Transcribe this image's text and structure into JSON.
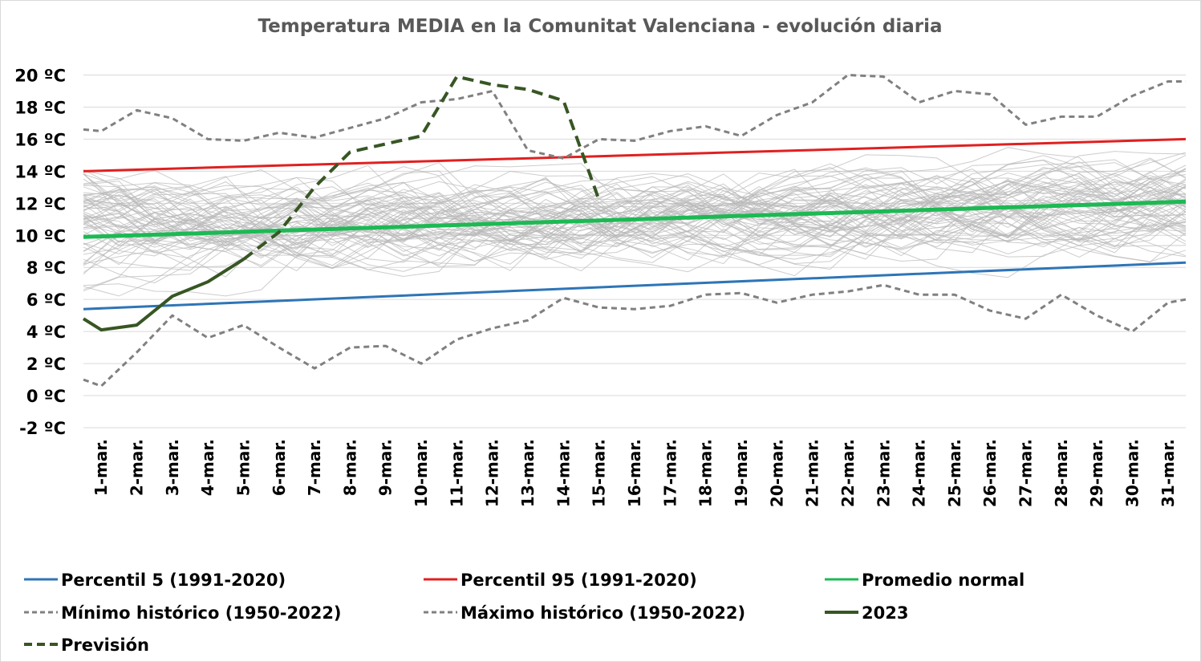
{
  "chart_data": {
    "type": "line",
    "title": "Temperatura MEDIA en la Comunitat Valenciana - evolución diaria",
    "xlabel": "",
    "ylabel": "",
    "ylim": [
      -2,
      20
    ],
    "yticks": [
      "-2 ºC",
      "0 ºC",
      "2 ºC",
      "4 ºC",
      "6 ºC",
      "8 ºC",
      "10 ºC",
      "12 ºC",
      "14 ºC",
      "16 ºC",
      "18 ºC",
      "20 ºC"
    ],
    "ytick_values": [
      -2,
      0,
      2,
      4,
      6,
      8,
      10,
      12,
      14,
      16,
      18,
      20
    ],
    "grid": true,
    "legend_position": "bottom",
    "categories": [
      "1-mar.",
      "2-mar.",
      "3-mar.",
      "4-mar.",
      "5-mar.",
      "6-mar.",
      "7-mar.",
      "8-mar.",
      "9-mar.",
      "10-mar.",
      "11-mar.",
      "12-mar.",
      "13-mar.",
      "14-mar.",
      "15-mar.",
      "16-mar.",
      "17-mar.",
      "18-mar.",
      "19-mar.",
      "20-mar.",
      "21-mar.",
      "22-mar.",
      "23-mar.",
      "24-mar.",
      "25-mar.",
      "26-mar.",
      "27-mar.",
      "28-mar.",
      "29-mar.",
      "30-mar.",
      "31-mar."
    ],
    "series": [
      {
        "name": "Percentil 5 (1991-2020)",
        "color": "#2e75b6",
        "style": "solid",
        "width": 3,
        "x": [
          0.5,
          31.5
        ],
        "y": [
          5.4,
          8.3
        ]
      },
      {
        "name": "Percentil 95 (1991-2020)",
        "color": "#e02020",
        "style": "solid",
        "width": 3,
        "x": [
          0.5,
          31.5
        ],
        "y": [
          14.0,
          16.0
        ]
      },
      {
        "name": "Promedio normal",
        "color": "#1db954",
        "style": "solid",
        "width": 5,
        "x": [
          0.5,
          31.5
        ],
        "y": [
          9.9,
          12.1
        ]
      },
      {
        "name": "Mínimo histórico (1950-2022)",
        "color": "#808080",
        "style": "dashed",
        "width": 3,
        "x": [
          0.5,
          1,
          2,
          3,
          4,
          5,
          6,
          7,
          8,
          9,
          10,
          11,
          12,
          13,
          14,
          15,
          16,
          17,
          18,
          19,
          20,
          21,
          22,
          23,
          24,
          25,
          26,
          27,
          28,
          29,
          30,
          31,
          31.5
        ],
        "y": [
          1.0,
          0.6,
          2.7,
          5.0,
          3.6,
          4.4,
          3.0,
          1.7,
          3.0,
          3.1,
          2.0,
          3.5,
          4.2,
          4.7,
          6.1,
          5.5,
          5.4,
          5.6,
          6.3,
          6.4,
          5.8,
          6.3,
          6.5,
          6.9,
          6.3,
          6.3,
          5.3,
          4.8,
          6.3,
          5.0,
          4.0,
          5.8,
          6.0
        ]
      },
      {
        "name": "Máximo histórico (1950-2022)",
        "color": "#808080",
        "style": "dashed",
        "width": 3,
        "x": [
          0.5,
          1,
          2,
          3,
          4,
          5,
          6,
          7,
          8,
          9,
          10,
          11,
          12,
          13,
          14,
          15,
          16,
          17,
          18,
          19,
          20,
          21,
          22,
          23,
          24,
          25,
          26,
          27,
          28,
          29,
          30,
          31,
          31.5
        ],
        "y": [
          16.6,
          16.5,
          17.8,
          17.3,
          16.0,
          15.9,
          16.4,
          16.1,
          16.7,
          17.3,
          18.3,
          18.5,
          19.0,
          15.3,
          14.8,
          16.0,
          15.9,
          16.5,
          16.8,
          16.2,
          17.5,
          18.3,
          20.0,
          19.9,
          18.3,
          19.0,
          18.8,
          16.9,
          17.4,
          17.4,
          18.7,
          19.6,
          19.6
        ]
      },
      {
        "name": "2023",
        "color": "#375623",
        "style": "solid",
        "width": 4,
        "x": [
          0.5,
          1,
          2,
          3,
          4,
          5
        ],
        "y": [
          4.8,
          4.1,
          4.4,
          6.2,
          7.1,
          8.5
        ]
      },
      {
        "name": "Previsión",
        "color": "#375623",
        "style": "dashed",
        "width": 4,
        "x": [
          5,
          6,
          7,
          8,
          9,
          10,
          11,
          12,
          13,
          14,
          15
        ],
        "y": [
          8.5,
          10.2,
          13.0,
          15.2,
          15.7,
          16.2,
          19.9,
          19.4,
          19.1,
          18.4,
          12.2
        ]
      }
    ]
  },
  "legend": {
    "items": [
      {
        "label": "Percentil 5 (1991-2020)",
        "color": "#2e75b6",
        "style": "solid"
      },
      {
        "label": "Percentil 95 (1991-2020)",
        "color": "#e02020",
        "style": "solid"
      },
      {
        "label": "Promedio normal",
        "color": "#1db954",
        "style": "solid"
      },
      {
        "label": "Mínimo histórico (1950-2022)",
        "color": "#808080",
        "style": "dashed"
      },
      {
        "label": "Máximo histórico (1950-2022)",
        "color": "#808080",
        "style": "dashed"
      },
      {
        "label": "2023",
        "color": "#375623",
        "style": "solid"
      },
      {
        "label": "Previsión",
        "color": "#375623",
        "style": "dashed"
      }
    ]
  }
}
